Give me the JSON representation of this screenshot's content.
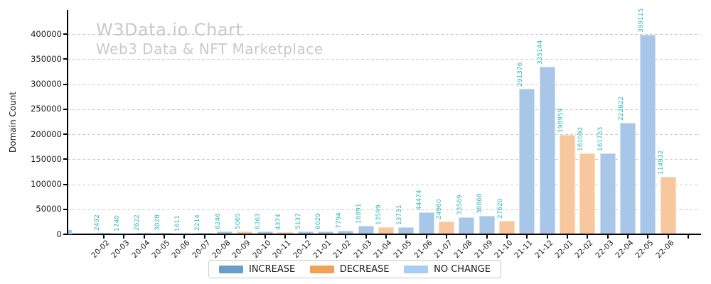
{
  "header": {
    "title": "W3Data.io Chart",
    "subtitle": "Web3 Data & NFT Marketplace"
  },
  "chart_data": {
    "type": "bar",
    "title": "W3Data.io Chart",
    "subtitle": "Web3 Data & NFT Marketplace",
    "xlabel": "",
    "ylabel": "Domain Count",
    "ylim": [
      0,
      445000
    ],
    "yticks": [
      0,
      50000,
      100000,
      150000,
      200000,
      250000,
      300000,
      350000,
      400000
    ],
    "grid": "horizontal dashed",
    "legend_position": "bottom center",
    "categories": [
      "20-02",
      "20-03",
      "20-04",
      "20-05",
      "20-06",
      "20-07",
      "20-08",
      "20-09",
      "20-10",
      "20-11",
      "20-12",
      "21-01",
      "21-02",
      "21-03",
      "21-04",
      "21-05",
      "21-06",
      "21-07",
      "21-08",
      "21-09",
      "21-10",
      "21-11",
      "21-12",
      "22-01",
      "22-02",
      "22-03",
      "22-04",
      "22-05",
      "22-06"
    ],
    "values": [
      2492,
      1740,
      2622,
      3028,
      1611,
      2214,
      6246,
      5065,
      6363,
      4374,
      5137,
      6029,
      7794,
      16891,
      13599,
      13731,
      44474,
      24960,
      33569,
      36868,
      27620,
      291376,
      335144,
      198959,
      161092,
      161753,
      222622,
      399115,
      114932
    ],
    "bar_statuses": [
      "increase",
      "decrease",
      "increase",
      "increase",
      "decrease",
      "increase",
      "increase",
      "decrease",
      "increase",
      "decrease",
      "increase",
      "increase",
      "increase",
      "increase",
      "decrease",
      "increase",
      "increase",
      "decrease",
      "increase",
      "increase",
      "decrease",
      "increase",
      "increase",
      "decrease",
      "decrease",
      "increase",
      "increase",
      "increase",
      "decrease"
    ],
    "bar_labels_color": "#35b8bd",
    "bar_alpha": 0.6,
    "legend": [
      {
        "label": "INCREASE",
        "color": "#6b9ccb",
        "status": "increase"
      },
      {
        "label": "DECREASE",
        "color": "#f0a057",
        "status": "decrease"
      },
      {
        "label": "NO CHANGE",
        "color": "#a6cef2",
        "status": "no-change"
      }
    ],
    "colors": {
      "title_gray": "#c9c9c9",
      "increase_fill": "#a8c6e7",
      "decrease_fill": "#f9c79d",
      "grid": "#cbcbcb",
      "axis": "#000000"
    }
  }
}
